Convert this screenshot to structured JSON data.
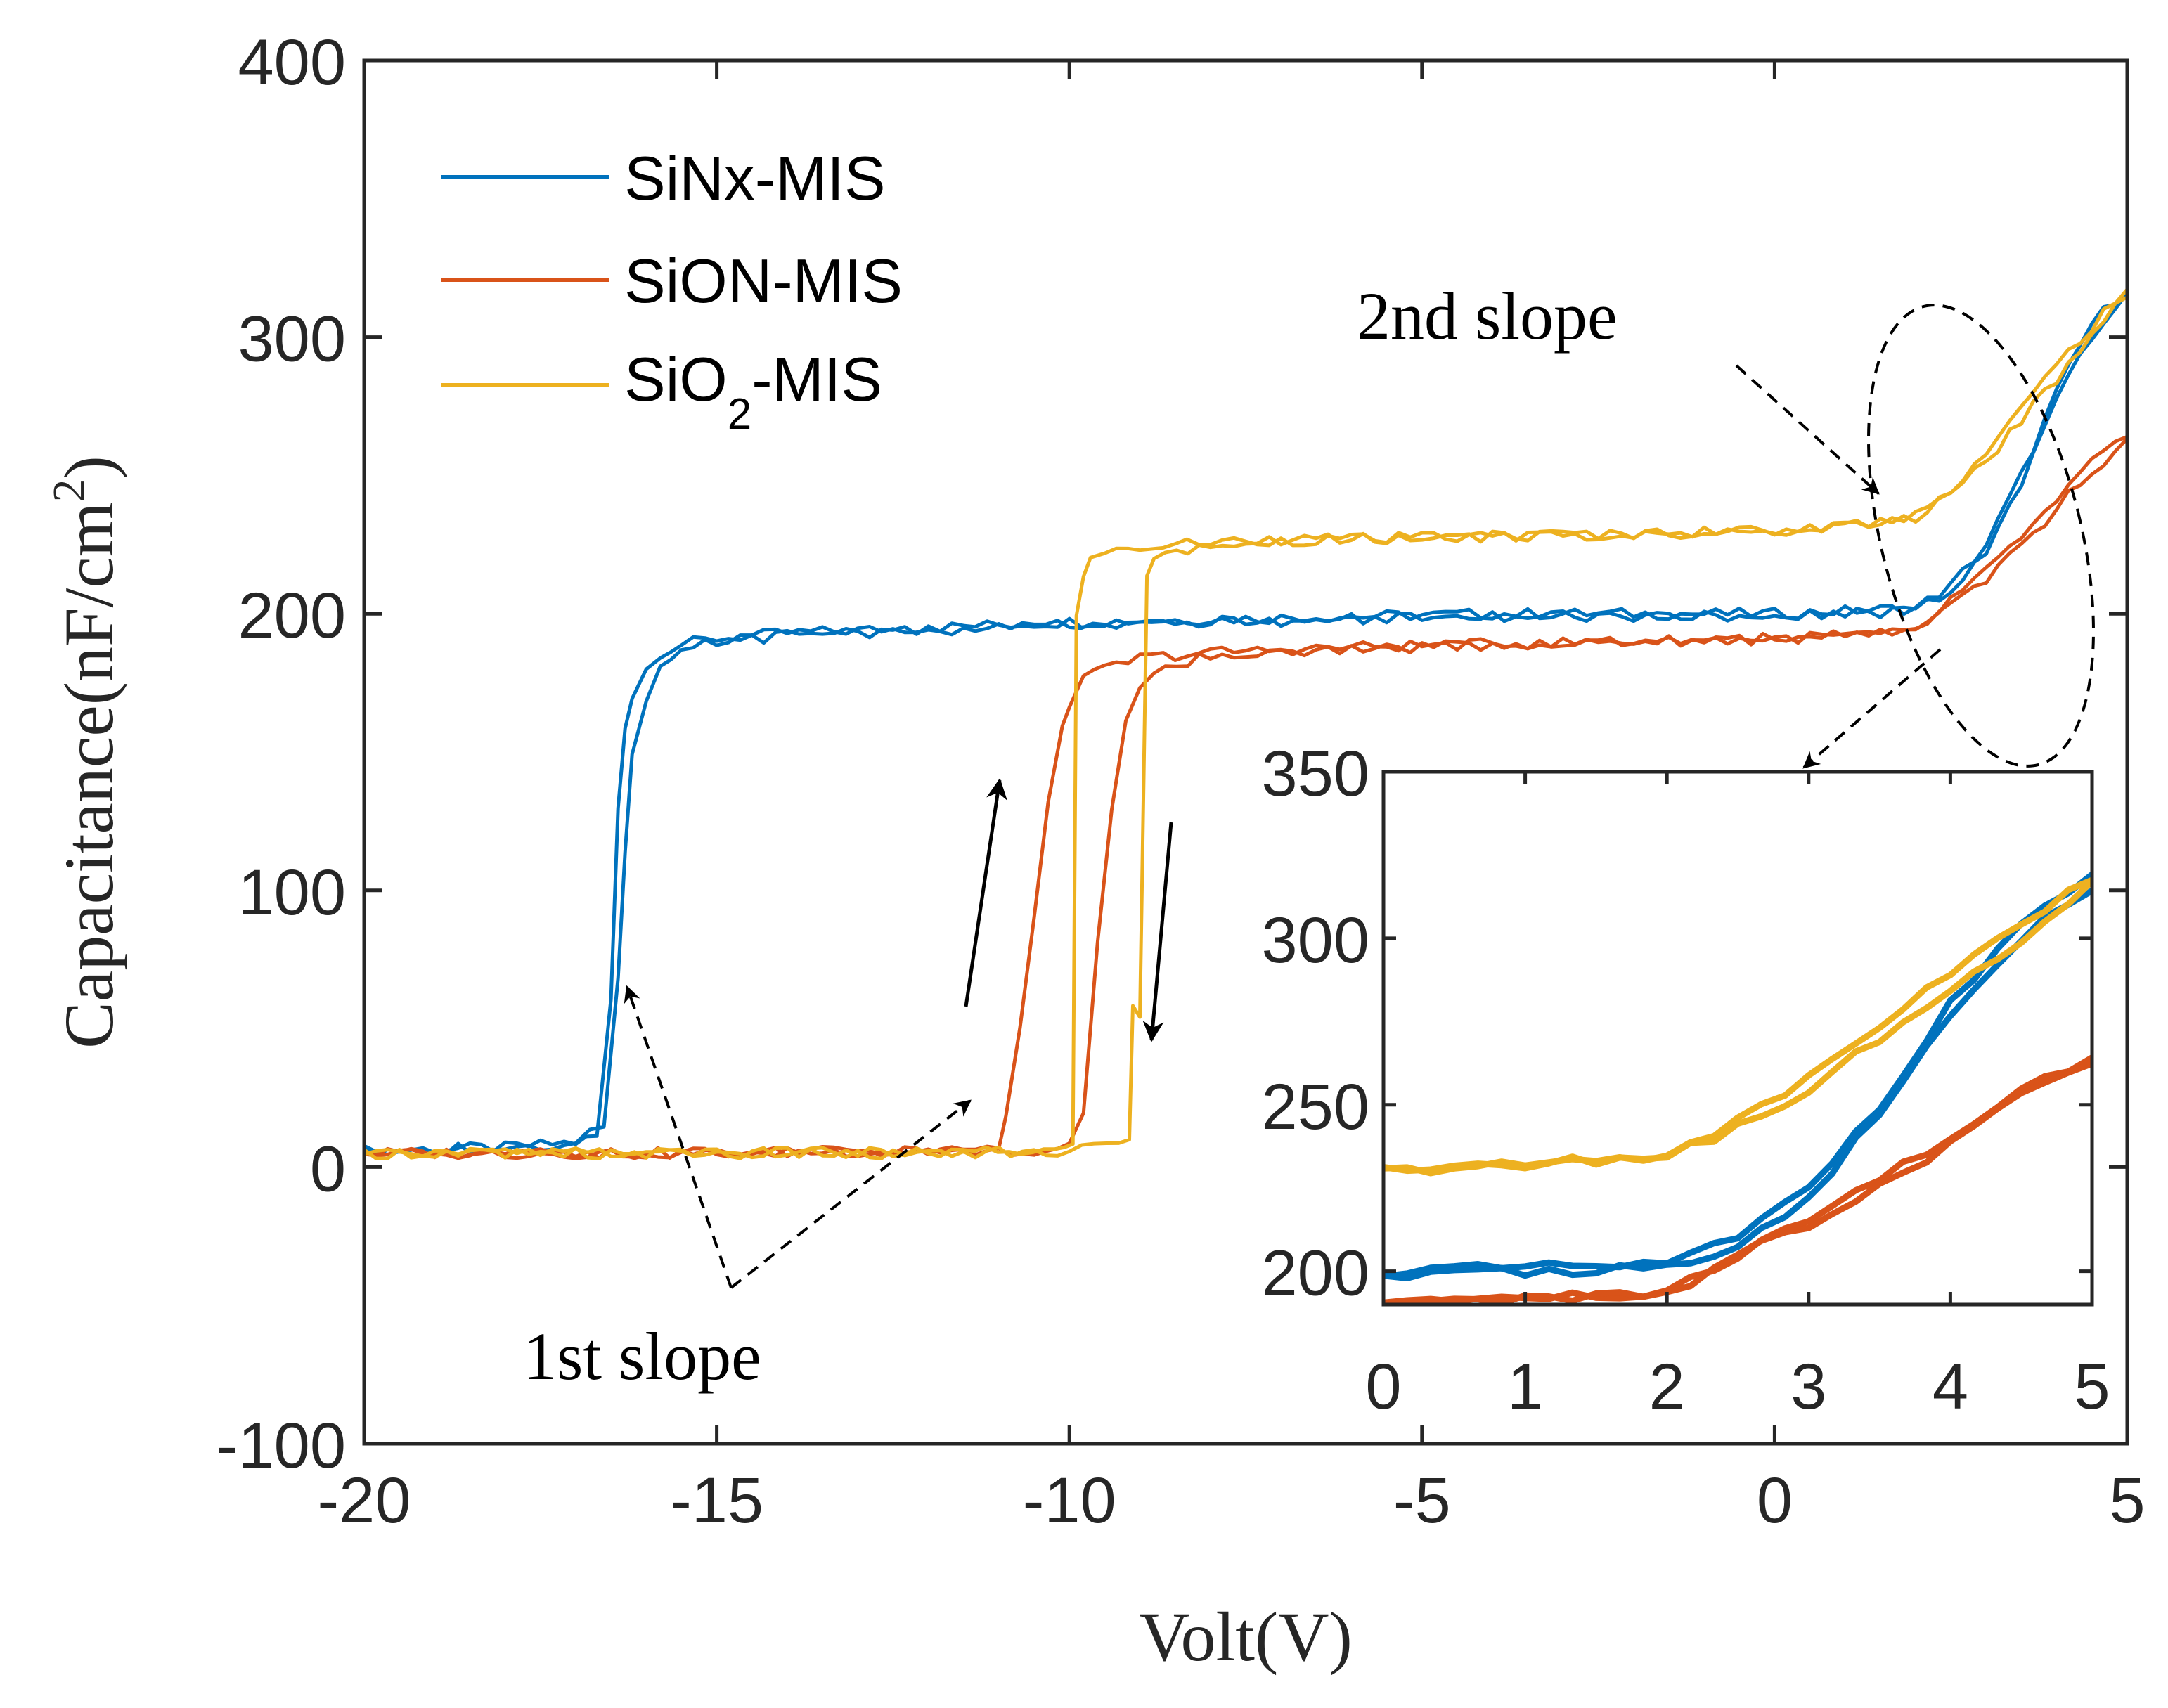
{
  "chart_data": {
    "type": "line",
    "xlabel": "Volt(V)",
    "ylabel": "Capacitance(nF/cm",
    "ylabel_sup": "2",
    "ylabel_close": ")",
    "xlim": [
      -20,
      5
    ],
    "ylim": [
      -100,
      400
    ],
    "xticks": [
      -20,
      -15,
      -10,
      -5,
      0,
      5
    ],
    "xtick_labels": [
      "-20",
      "-15",
      "-10",
      "-5",
      "0",
      "5"
    ],
    "yticks": [
      -100,
      0,
      100,
      200,
      300,
      400
    ],
    "ytick_labels": [
      "-100",
      "0",
      "100",
      "200",
      "300",
      "400"
    ],
    "legend": {
      "placement": "top-left",
      "entries": [
        {
          "label": "SiNx-MIS",
          "color": "#0072BD"
        },
        {
          "label": "SiON-MIS",
          "color": "#D95319"
        },
        {
          "label": "SiO",
          "sub": "2",
          "suffix": "-MIS",
          "color": "#EDB120"
        }
      ]
    },
    "series": [
      {
        "name": "SiNx-MIS",
        "color": "#0072BD",
        "forward": {
          "x": [
            -20,
            -18,
            -17,
            -16.7,
            -16.5,
            -16.4,
            -16.3,
            -16.2,
            -16.0,
            -15.8,
            -15.5,
            -15,
            -14,
            -12,
            -10,
            -8,
            -6,
            -4,
            -2,
            0,
            1,
            2,
            2.5,
            3,
            3.5,
            4,
            4.5,
            5
          ],
          "y": [
            6,
            7,
            9,
            11,
            60,
            130,
            160,
            170,
            180,
            186,
            189,
            191,
            193,
            195,
            197,
            198,
            199,
            200,
            200,
            200,
            201,
            202,
            210,
            225,
            250,
            280,
            305,
            318
          ]
        },
        "reverse": {
          "x": [
            5,
            4.5,
            4,
            3.5,
            3,
            2.5,
            2,
            1,
            0,
            -2,
            -4,
            -6,
            -8,
            -10,
            -12,
            -14,
            -15,
            -15.5,
            -15.8,
            -16.0,
            -16.2,
            -16.3,
            -16.4,
            -16.6,
            -17,
            -18,
            -20
          ],
          "y": [
            315,
            300,
            278,
            248,
            222,
            208,
            201,
            200,
            199,
            199,
            199,
            198,
            197,
            196,
            194,
            192,
            190,
            186,
            180,
            168,
            150,
            115,
            70,
            15,
            9,
            7,
            6
          ]
        }
      },
      {
        "name": "SiON-MIS",
        "color": "#D95319",
        "forward": {
          "x": [
            -20,
            -15,
            -12,
            -11,
            -10.9,
            -10.7,
            -10.5,
            -10.3,
            -10.1,
            -10.0,
            -9.8,
            -9.5,
            -9,
            -8,
            -6,
            -4,
            -2,
            0,
            1,
            2,
            2.5,
            3,
            3.5,
            4,
            4.5,
            5
          ],
          "y": [
            5,
            5,
            6,
            6,
            20,
            50,
            90,
            130,
            160,
            168,
            176,
            180,
            184,
            186,
            188,
            189,
            190,
            191,
            192,
            193,
            205,
            215,
            228,
            240,
            255,
            263
          ]
        },
        "reverse": {
          "x": [
            5,
            4.5,
            4,
            3.5,
            3,
            2.5,
            2,
            1,
            0,
            -2,
            -4,
            -6,
            -8,
            -8.8,
            -9.0,
            -9.2,
            -9.4,
            -9.6,
            -9.8,
            -10.0,
            -10.5,
            -12,
            -15,
            -20
          ],
          "y": [
            262,
            252,
            238,
            225,
            213,
            205,
            193,
            192,
            191,
            190,
            189,
            187,
            185,
            180,
            172,
            160,
            130,
            80,
            20,
            7,
            6,
            6,
            5,
            5
          ]
        }
      },
      {
        "name": "SiO₂-MIS",
        "color": "#EDB120",
        "forward": {
          "x": [
            -20,
            -15,
            -12,
            -10.2,
            -9.95,
            -9.9,
            -9.8,
            -9.7,
            -9.5,
            -9,
            -8,
            -6,
            -4,
            -2,
            0,
            1,
            2,
            2.5,
            3,
            3.5,
            4,
            4.5,
            5
          ],
          "y": [
            5,
            5,
            5,
            6,
            7,
            200,
            215,
            219,
            222,
            224,
            226,
            227,
            228,
            229,
            230,
            232,
            235,
            245,
            258,
            274,
            290,
            304,
            318
          ]
        },
        "reverse": {
          "x": [
            5,
            4.5,
            4,
            3.5,
            3,
            2.5,
            2,
            1,
            0,
            -2,
            -4,
            -6,
            -8,
            -8.8,
            -8.9,
            -9.0,
            -9.1,
            -9.15,
            -9.3,
            -10,
            -12,
            -15,
            -20
          ],
          "y": [
            316,
            300,
            285,
            270,
            255,
            243,
            235,
            232,
            230,
            229,
            228,
            227,
            226,
            220,
            212,
            55,
            60,
            8,
            7,
            6,
            5,
            5,
            5
          ]
        }
      }
    ],
    "inset": {
      "xlim": [
        0,
        5
      ],
      "ylim": [
        190,
        350
      ],
      "xticks": [
        0,
        1,
        2,
        3,
        4,
        5
      ],
      "xtick_labels": [
        "0",
        "1",
        "2",
        "3",
        "4",
        "5"
      ],
      "yticks": [
        200,
        250,
        300,
        350
      ],
      "ytick_labels": [
        "200",
        "250",
        "300",
        "350"
      ]
    },
    "annotations": {
      "first_slope": "1st slope",
      "second_slope": "2nd slope"
    }
  }
}
